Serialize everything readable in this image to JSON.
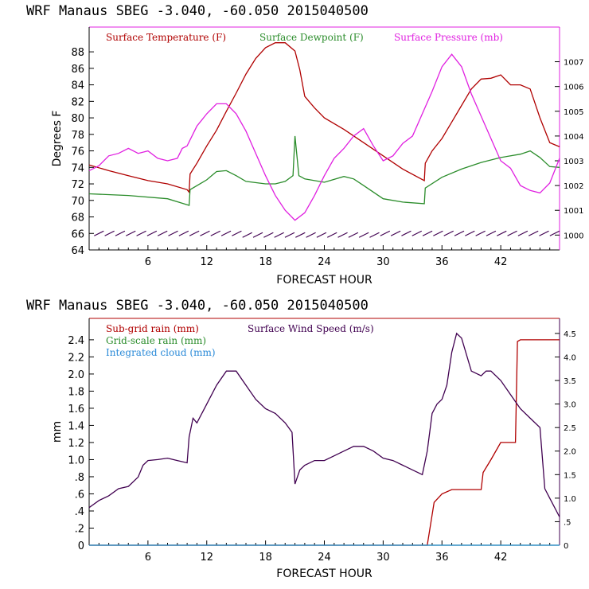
{
  "chart_data": [
    {
      "type": "line",
      "title": "WRF   Manaus SBEG   -3.040, -60.050  2015040500",
      "xlabel": "FORECAST HOUR",
      "ylabel": "Degrees F",
      "xlim": [
        0,
        48
      ],
      "ylim": [
        64,
        91
      ],
      "y2lim": [
        999.4,
        1008.4
      ],
      "xticks": [
        6,
        12,
        18,
        24,
        30,
        36,
        42
      ],
      "yticks": [
        64,
        66,
        68,
        70,
        72,
        74,
        76,
        78,
        80,
        82,
        84,
        86,
        88
      ],
      "y2ticks": [
        1000,
        1001,
        1002,
        1003,
        1004,
        1005,
        1006,
        1007
      ],
      "series": [
        {
          "name": "Surface Temperature (F)",
          "color": "#b00000",
          "axis": "left",
          "points": [
            [
              0,
              74.3
            ],
            [
              2,
              73.6
            ],
            [
              4,
              73
            ],
            [
              6,
              72.4
            ],
            [
              8,
              72
            ],
            [
              10,
              71.3
            ],
            [
              10.2,
              71.0
            ],
            [
              10.3,
              73.2
            ],
            [
              11,
              74.5
            ],
            [
              12,
              76.6
            ],
            [
              13,
              78.5
            ],
            [
              14,
              80.8
            ],
            [
              15,
              83
            ],
            [
              16,
              85.3
            ],
            [
              17,
              87.2
            ],
            [
              18,
              88.5
            ],
            [
              19,
              89.1
            ],
            [
              20,
              89.1
            ],
            [
              21,
              88.1
            ],
            [
              21.5,
              85.8
            ],
            [
              22,
              82.6
            ],
            [
              23,
              81.2
            ],
            [
              24,
              80
            ],
            [
              26,
              78.6
            ],
            [
              28,
              77
            ],
            [
              30,
              75.4
            ],
            [
              32,
              73.8
            ],
            [
              34.2,
              72.4
            ],
            [
              34.3,
              74.5
            ],
            [
              35,
              76
            ],
            [
              36,
              77.5
            ],
            [
              37,
              79.5
            ],
            [
              38,
              81.5
            ],
            [
              39,
              83.5
            ],
            [
              40,
              84.7
            ],
            [
              41,
              84.8
            ],
            [
              42,
              85.2
            ],
            [
              43,
              84
            ],
            [
              44,
              84
            ],
            [
              45,
              83.5
            ],
            [
              46,
              80
            ],
            [
              47,
              77
            ],
            [
              48,
              76.5
            ]
          ]
        },
        {
          "name": "Surface Dewpoint (F)",
          "color": "#2a8c2a",
          "axis": "left",
          "points": [
            [
              0,
              70.8
            ],
            [
              4,
              70.6
            ],
            [
              8,
              70.2
            ],
            [
              10.2,
              69.4
            ],
            [
              10.3,
              71.3
            ],
            [
              12,
              72.5
            ],
            [
              13,
              73.5
            ],
            [
              14,
              73.6
            ],
            [
              15,
              73
            ],
            [
              16,
              72.3
            ],
            [
              18,
              72
            ],
            [
              19,
              72
            ],
            [
              20,
              72.3
            ],
            [
              20.8,
              73
            ],
            [
              21,
              77.8
            ],
            [
              21.4,
              73
            ],
            [
              21.7,
              72.8
            ],
            [
              22,
              72.6
            ],
            [
              24,
              72.2
            ],
            [
              26,
              72.9
            ],
            [
              27,
              72.6
            ],
            [
              28,
              71.8
            ],
            [
              30,
              70.2
            ],
            [
              32,
              69.8
            ],
            [
              34.2,
              69.6
            ],
            [
              34.3,
              71.5
            ],
            [
              36,
              72.8
            ],
            [
              38,
              73.8
            ],
            [
              40,
              74.6
            ],
            [
              42,
              75.2
            ],
            [
              44,
              75.6
            ],
            [
              45,
              76
            ],
            [
              46,
              75.2
            ],
            [
              47,
              74.1
            ],
            [
              48,
              74
            ]
          ]
        },
        {
          "name": "Surface Pressure (mb)",
          "color": "#e020e0",
          "axis": "right",
          "points": [
            [
              0,
              1002.6
            ],
            [
              1,
              1002.8
            ],
            [
              2,
              1003.2
            ],
            [
              3,
              1003.3
            ],
            [
              4,
              1003.5
            ],
            [
              5,
              1003.3
            ],
            [
              6,
              1003.4
            ],
            [
              7,
              1003.1
            ],
            [
              8,
              1003.0
            ],
            [
              9,
              1003.1
            ],
            [
              9.5,
              1003.5
            ],
            [
              10,
              1003.6
            ],
            [
              11,
              1004.4
            ],
            [
              12,
              1004.9
            ],
            [
              13,
              1005.3
            ],
            [
              14,
              1005.3
            ],
            [
              15,
              1004.9
            ],
            [
              16,
              1004.2
            ],
            [
              17,
              1003.3
            ],
            [
              18,
              1002.4
            ],
            [
              19,
              1001.6
            ],
            [
              20,
              1001.0
            ],
            [
              21,
              1000.6
            ],
            [
              22,
              1000.9
            ],
            [
              23,
              1001.6
            ],
            [
              24,
              1002.4
            ],
            [
              25,
              1003.1
            ],
            [
              26,
              1003.5
            ],
            [
              27,
              1004.0
            ],
            [
              28,
              1004.3
            ],
            [
              29,
              1003.6
            ],
            [
              30,
              1003.0
            ],
            [
              31,
              1003.2
            ],
            [
              32,
              1003.7
            ],
            [
              33,
              1004.0
            ],
            [
              34,
              1004.9
            ],
            [
              35,
              1005.8
            ],
            [
              36,
              1006.8
            ],
            [
              37,
              1007.3
            ],
            [
              38,
              1006.8
            ],
            [
              39,
              1005.7
            ],
            [
              40,
              1004.8
            ],
            [
              41,
              1003.9
            ],
            [
              42,
              1003.0
            ],
            [
              43,
              1002.7
            ],
            [
              44,
              1002.0
            ],
            [
              45,
              1001.8
            ],
            [
              46,
              1001.7
            ],
            [
              47,
              1002.1
            ],
            [
              48,
              1003.1
            ]
          ]
        }
      ],
      "wind_barbs": {
        "count": 44,
        "start_x": 1,
        "end_x": 47.5,
        "level_y": 66,
        "color": "#400050"
      }
    },
    {
      "type": "line",
      "title": "WRF   Manaus SBEG   -3.040, -60.050  2015040500",
      "xlabel": "FORECAST HOUR",
      "ylabel": "mm",
      "xlim": [
        0,
        48
      ],
      "ylim": [
        0,
        2.65
      ],
      "y2lim": [
        0,
        4.82
      ],
      "xticks": [
        6,
        12,
        18,
        24,
        30,
        36,
        42
      ],
      "yticks": [
        0,
        0.2,
        0.4,
        0.6,
        0.8,
        1.0,
        1.2,
        1.4,
        1.6,
        1.8,
        2.0,
        2.2,
        2.4
      ],
      "ytick_labels": [
        "0",
        ".2",
        ".4",
        ".6",
        ".8",
        "1.0",
        "1.2",
        "1.4",
        "1.6",
        "1.8",
        "2.0",
        "2.2",
        "2.4"
      ],
      "y2ticks": [
        0,
        0.5,
        1.0,
        1.5,
        2.0,
        2.5,
        3.0,
        3.5,
        4.0,
        4.5
      ],
      "y2tick_labels": [
        "0",
        ".5",
        "1.0",
        "1.5",
        "2.0",
        "2.5",
        "3.0",
        "3.5",
        "4.0",
        "4.5"
      ],
      "series": [
        {
          "name": "Sub-grid rain (mm)",
          "color": "#b00000",
          "axis": "left",
          "points": [
            [
              0,
              0
            ],
            [
              34.5,
              0
            ],
            [
              35.2,
              0.5
            ],
            [
              36,
              0.6
            ],
            [
              37,
              0.65
            ],
            [
              39,
              0.65
            ],
            [
              40,
              0.65
            ],
            [
              40.2,
              0.85
            ],
            [
              41,
              1.0
            ],
            [
              42,
              1.2
            ],
            [
              43.5,
              1.2
            ],
            [
              43.7,
              2.38
            ],
            [
              44,
              2.4
            ],
            [
              48,
              2.4
            ]
          ]
        },
        {
          "name": "Grid-scale rain (mm)",
          "color": "#2a8c2a",
          "axis": "left",
          "points": [
            [
              0,
              0
            ],
            [
              48,
              0
            ]
          ]
        },
        {
          "name": "Integrated cloud (mm)",
          "color": "#2a8ad8",
          "axis": "left",
          "points": [
            [
              0,
              0
            ],
            [
              48,
              0
            ]
          ]
        },
        {
          "name": "Surface Wind Speed (m/s)",
          "color": "#400050",
          "axis": "right",
          "points": [
            [
              0,
              0.8
            ],
            [
              1,
              0.95
            ],
            [
              2,
              1.05
            ],
            [
              3,
              1.2
            ],
            [
              4,
              1.25
            ],
            [
              5,
              1.45
            ],
            [
              5.5,
              1.7
            ],
            [
              6,
              1.8
            ],
            [
              7,
              1.82
            ],
            [
              8,
              1.85
            ],
            [
              9,
              1.8
            ],
            [
              10,
              1.75
            ],
            [
              10.2,
              2.3
            ],
            [
              10.6,
              2.7
            ],
            [
              11,
              2.6
            ],
            [
              12,
              3.0
            ],
            [
              13,
              3.4
            ],
            [
              14,
              3.7
            ],
            [
              15,
              3.7
            ],
            [
              16,
              3.4
            ],
            [
              17,
              3.1
            ],
            [
              18,
              2.9
            ],
            [
              19,
              2.8
            ],
            [
              20,
              2.6
            ],
            [
              20.7,
              2.4
            ],
            [
              21,
              1.3
            ],
            [
              21.5,
              1.6
            ],
            [
              22,
              1.7
            ],
            [
              23,
              1.8
            ],
            [
              24,
              1.8
            ],
            [
              25,
              1.9
            ],
            [
              26,
              2.0
            ],
            [
              27,
              2.1
            ],
            [
              28,
              2.1
            ],
            [
              29,
              2.0
            ],
            [
              30,
              1.85
            ],
            [
              31,
              1.8
            ],
            [
              32,
              1.7
            ],
            [
              33,
              1.6
            ],
            [
              34,
              1.5
            ],
            [
              34.5,
              2.0
            ],
            [
              35,
              2.8
            ],
            [
              35.5,
              3.0
            ],
            [
              36,
              3.1
            ],
            [
              36.5,
              3.4
            ],
            [
              37,
              4.1
            ],
            [
              37.5,
              4.5
            ],
            [
              38,
              4.4
            ],
            [
              39,
              3.7
            ],
            [
              40,
              3.6
            ],
            [
              40.5,
              3.7
            ],
            [
              41,
              3.7
            ],
            [
              42,
              3.5
            ],
            [
              43,
              3.2
            ],
            [
              44,
              2.9
            ],
            [
              45,
              2.7
            ],
            [
              46,
              2.5
            ],
            [
              46.5,
              1.2
            ],
            [
              47,
              1.0
            ],
            [
              48,
              0.6
            ]
          ]
        }
      ]
    }
  ]
}
